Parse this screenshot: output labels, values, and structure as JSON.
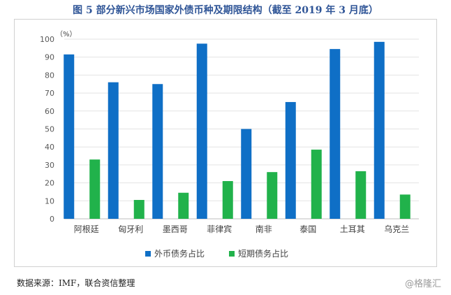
{
  "title": "图 5  部分新兴市场国家外债币种及期限结构（截至 2019 年 3 月底）",
  "source": "数据来源：IMF，联合资信整理",
  "watermark": "@格隆汇",
  "chart_data": {
    "type": "bar",
    "title": "",
    "unit_label": "（%）",
    "categories": [
      "阿根廷",
      "匈牙利",
      "墨西哥",
      "菲律宾",
      "南非",
      "泰国",
      "土耳其",
      "乌克兰"
    ],
    "series": [
      {
        "name": "外币债务占比",
        "color": "#0f6fc6",
        "values": [
          91.5,
          76,
          75,
          97.5,
          50,
          65,
          94.5,
          98.5
        ]
      },
      {
        "name": "短期债务占比",
        "color": "#21b24b",
        "values": [
          33,
          10.5,
          14.5,
          21,
          26,
          38.5,
          26.5,
          13.5
        ]
      }
    ],
    "ylim": [
      0,
      100
    ],
    "yticks": [
      0,
      10,
      20,
      30,
      40,
      50,
      60,
      70,
      80,
      90,
      100
    ],
    "grid": true,
    "legend_position": "bottom"
  }
}
